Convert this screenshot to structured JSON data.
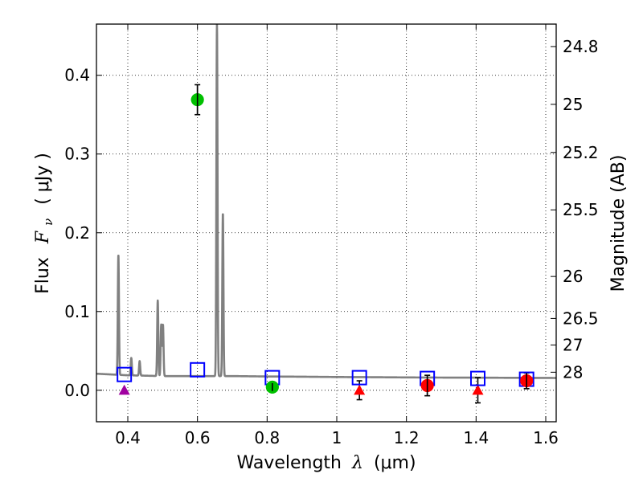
{
  "chart_data": {
    "type": "scatter",
    "xlabel_prefix": "Wavelength",
    "xlabel_sym": "λ",
    "xlabel_unit": "(μm)",
    "ylabel_prefix": "Flux",
    "ylabel_sym": "F",
    "ylabel_sub": "ν",
    "ylabel_unit": "( μJy )",
    "y2label": "Magnitude (AB)",
    "xlim": [
      0.31,
      1.63
    ],
    "ylim": [
      -0.04,
      0.465
    ],
    "xticks": [
      0.4,
      0.6,
      0.8,
      1.0,
      1.2,
      1.4,
      1.6
    ],
    "xtick_labels": [
      "0.4",
      "0.6",
      "0.8",
      "1",
      "1.2",
      "1.4",
      "1.6"
    ],
    "yticks": [
      0.0,
      0.1,
      0.2,
      0.3,
      0.4
    ],
    "ytick_labels": [
      "0.0",
      "0.1",
      "0.2",
      "0.3",
      "0.4"
    ],
    "mag_ticks": [
      {
        "flux": 0.4365,
        "label": "24.8"
      },
      {
        "flux": 0.3631,
        "label": "25"
      },
      {
        "flux": 0.302,
        "label": "25.2"
      },
      {
        "flux": 0.2291,
        "label": "25.5"
      },
      {
        "flux": 0.1445,
        "label": "26"
      },
      {
        "flux": 0.0912,
        "label": "26.5"
      },
      {
        "flux": 0.0575,
        "label": "27"
      },
      {
        "flux": 0.0229,
        "label": "28"
      }
    ],
    "grid": true,
    "colors": {
      "model": "#808080",
      "model_box": "#0000ff",
      "detection": "#00c000",
      "upper_limit": "#ff0000",
      "special": "#a000a0",
      "errorbar": "#000000"
    },
    "model_spectrum": {
      "continuum": [
        [
          0.31,
          0.021
        ],
        [
          0.4,
          0.019
        ],
        [
          0.5,
          0.018
        ],
        [
          0.6,
          0.018
        ],
        [
          0.7,
          0.018
        ],
        [
          0.8,
          0.0175
        ],
        [
          0.9,
          0.0172
        ],
        [
          1.0,
          0.0168
        ],
        [
          1.1,
          0.0166
        ],
        [
          1.2,
          0.0163
        ],
        [
          1.3,
          0.0161
        ],
        [
          1.4,
          0.016
        ],
        [
          1.5,
          0.0158
        ],
        [
          1.63,
          0.0156
        ]
      ],
      "emission_lines": [
        {
          "x": 0.373,
          "peak": 0.172
        },
        {
          "x": 0.41,
          "peak": 0.041
        },
        {
          "x": 0.434,
          "peak": 0.037
        },
        {
          "x": 0.486,
          "peak": 0.114
        },
        {
          "x": 0.496,
          "peak": 0.083
        },
        {
          "x": 0.501,
          "peak": 0.083
        },
        {
          "x": 0.656,
          "peak": 0.465
        },
        {
          "x": 0.673,
          "peak": 0.225
        }
      ]
    },
    "model_boxes": [
      {
        "x": 0.39,
        "y": 0.02
      },
      {
        "x": 0.6,
        "y": 0.026
      },
      {
        "x": 0.815,
        "y": 0.016
      },
      {
        "x": 1.065,
        "y": 0.016
      },
      {
        "x": 1.26,
        "y": 0.015
      },
      {
        "x": 1.405,
        "y": 0.015
      },
      {
        "x": 1.545,
        "y": 0.014
      }
    ],
    "detections": [
      {
        "x": 0.6,
        "y": 0.369,
        "err": 0.019,
        "kind": "detection"
      },
      {
        "x": 0.815,
        "y": 0.004,
        "err": 0.005,
        "kind": "detection"
      },
      {
        "x": 1.26,
        "y": 0.006,
        "err": 0.013,
        "kind": "upper_limit"
      },
      {
        "x": 1.545,
        "y": 0.012,
        "err": 0.01,
        "kind": "upper_limit"
      }
    ],
    "upper_limits": [
      {
        "x": 0.39,
        "y": 0.0,
        "err": 0.0,
        "kind": "special"
      },
      {
        "x": 1.065,
        "y": 0.0,
        "err": 0.012,
        "kind": "upper_limit"
      },
      {
        "x": 1.405,
        "y": 0.0,
        "err": 0.016,
        "kind": "upper_limit"
      }
    ]
  }
}
